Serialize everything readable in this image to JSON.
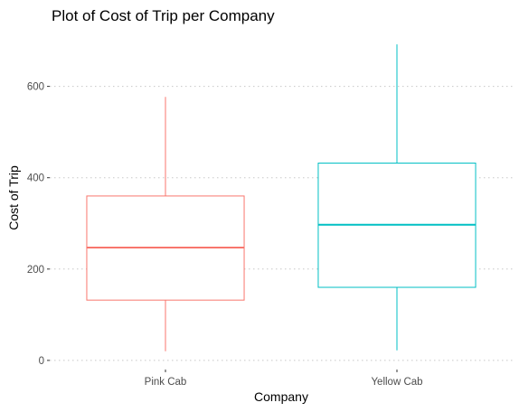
{
  "chart_data": {
    "type": "boxplot",
    "title": "Plot of Cost of Trip per Company",
    "xlabel": "Company",
    "ylabel": "Cost of Trip",
    "ylim": [
      -20,
      710
    ],
    "yticks": [
      0,
      200,
      400,
      600
    ],
    "grid": true,
    "categories": [
      "Pink Cab",
      "Yellow Cab"
    ],
    "boxes": [
      {
        "category": "Pink Cab",
        "color": "#f8766d",
        "min": 20,
        "q1": 132,
        "median": 247,
        "q3": 360,
        "max": 577
      },
      {
        "category": "Yellow Cab",
        "color": "#00bfc4",
        "min": 22,
        "q1": 160,
        "median": 297,
        "q3": 432,
        "max": 692
      }
    ]
  }
}
